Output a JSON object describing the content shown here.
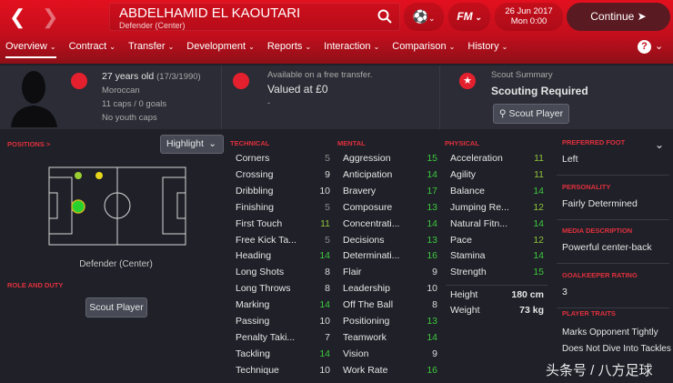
{
  "header": {
    "player_name": "ABDELHAMID EL KAOUTARI",
    "player_position": "Defender (Center)",
    "date": "26 Jun 2017",
    "time": "Mon 0:00",
    "continue_label": "Continue",
    "fm_label": "FM"
  },
  "nav": [
    "Overview",
    "Contract",
    "Transfer",
    "Development",
    "Reports",
    "Interaction",
    "Comparison",
    "History"
  ],
  "info": {
    "age": "27 years old",
    "dob": "(17/3/1990)",
    "nationality": "Moroccan",
    "caps": "11 caps / 0 goals",
    "youth": "No youth caps",
    "transfer_note": "Available on a free transfer.",
    "value": "Valued at £0",
    "value_sub": "-",
    "scout_title": "Scout Summary",
    "scout_status": "Scouting Required",
    "scout_button": "Scout Player"
  },
  "positions": {
    "title": "POSITIONS >",
    "highlight": "Highlight",
    "label": "Defender (Center)",
    "role_title": "ROLE AND DUTY",
    "scout_button": "Scout Player"
  },
  "technical": {
    "title": "TECHNICAL",
    "items": [
      [
        "Corners",
        5
      ],
      [
        "Crossing",
        9
      ],
      [
        "Dribbling",
        10
      ],
      [
        "Finishing",
        5
      ],
      [
        "First Touch",
        11
      ],
      [
        "Free Kick Ta...",
        5
      ],
      [
        "Heading",
        14
      ],
      [
        "Long Shots",
        8
      ],
      [
        "Long Throws",
        8
      ],
      [
        "Marking",
        14
      ],
      [
        "Passing",
        10
      ],
      [
        "Penalty Taki...",
        7
      ],
      [
        "Tackling",
        14
      ],
      [
        "Technique",
        10
      ]
    ]
  },
  "mental": {
    "title": "MENTAL",
    "items": [
      [
        "Aggression",
        15
      ],
      [
        "Anticipation",
        14
      ],
      [
        "Bravery",
        17
      ],
      [
        "Composure",
        13
      ],
      [
        "Concentrati...",
        14
      ],
      [
        "Decisions",
        13
      ],
      [
        "Determinati...",
        16
      ],
      [
        "Flair",
        9
      ],
      [
        "Leadership",
        10
      ],
      [
        "Off The Ball",
        8
      ],
      [
        "Positioning",
        13
      ],
      [
        "Teamwork",
        14
      ],
      [
        "Vision",
        9
      ],
      [
        "Work Rate",
        16
      ]
    ]
  },
  "physical": {
    "title": "PHYSICAL",
    "items": [
      [
        "Acceleration",
        11
      ],
      [
        "Agility",
        11
      ],
      [
        "Balance",
        14
      ],
      [
        "Jumping Re...",
        12
      ],
      [
        "Natural Fitn...",
        14
      ],
      [
        "Pace",
        12
      ],
      [
        "Stamina",
        14
      ],
      [
        "Strength",
        15
      ]
    ],
    "height_label": "Height",
    "height": "180 cm",
    "weight_label": "Weight",
    "weight": "73 kg"
  },
  "side": [
    {
      "title": "PREFERRED FOOT",
      "value": "Left"
    },
    {
      "title": "PERSONALITY",
      "value": "Fairly Determined"
    },
    {
      "title": "MEDIA DESCRIPTION",
      "value": "Powerful center-back"
    },
    {
      "title": "GOALKEEPER RATING",
      "value": "3"
    }
  ],
  "traits": {
    "title": "PLAYER TRAITS",
    "items": [
      "Marks Opponent Tightly",
      "Does Not Dive Into Tackles"
    ]
  },
  "watermark": "头条号 / 八方足球",
  "colors": {
    "accent": "#e0313d",
    "low": "#8c8c8c",
    "mid": "#dcdcdc",
    "good": "#8fc43a",
    "great": "#3ec83e"
  }
}
